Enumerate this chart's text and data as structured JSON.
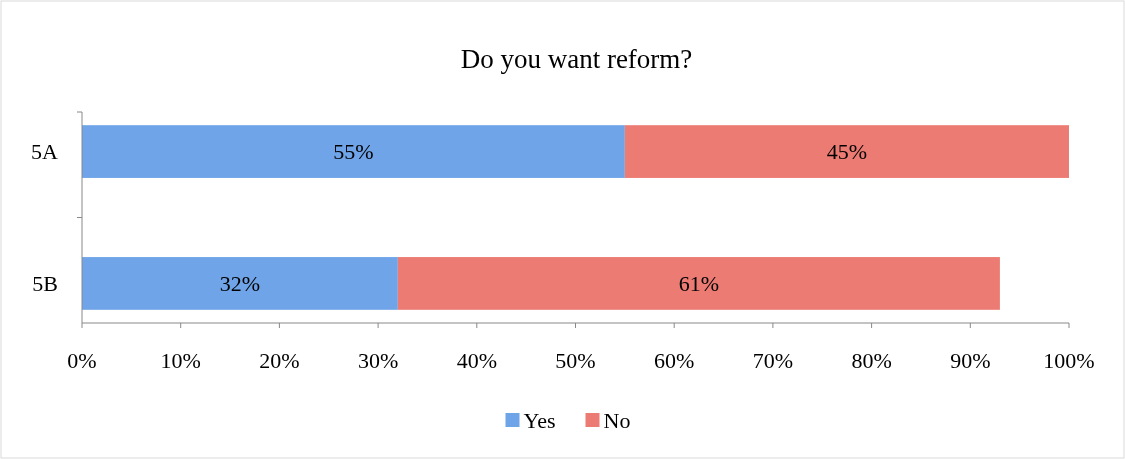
{
  "chart_data": {
    "type": "bar",
    "orientation": "horizontal",
    "stacked": true,
    "title": "Do you want reform?",
    "categories": [
      "5A",
      "5B"
    ],
    "series": [
      {
        "name": "Yes",
        "color": "#6fa5e8",
        "values": [
          55,
          32
        ],
        "value_labels": [
          "55%",
          "32%"
        ]
      },
      {
        "name": "No",
        "color": "#ec7b73",
        "values": [
          45,
          61
        ],
        "value_labels": [
          "45%",
          "61%"
        ]
      }
    ],
    "xlim": [
      0,
      100
    ],
    "xticks": [
      {
        "value": 0,
        "label": "0%"
      },
      {
        "value": 10,
        "label": "10%"
      },
      {
        "value": 20,
        "label": "20%"
      },
      {
        "value": 30,
        "label": "30%"
      },
      {
        "value": 40,
        "label": "40%"
      },
      {
        "value": 50,
        "label": "50%"
      },
      {
        "value": 60,
        "label": "60%"
      },
      {
        "value": 70,
        "label": "70%"
      },
      {
        "value": 80,
        "label": "80%"
      },
      {
        "value": 90,
        "label": "90%"
      },
      {
        "value": 100,
        "label": "100%"
      }
    ],
    "grid": false,
    "legend": "bottom"
  }
}
